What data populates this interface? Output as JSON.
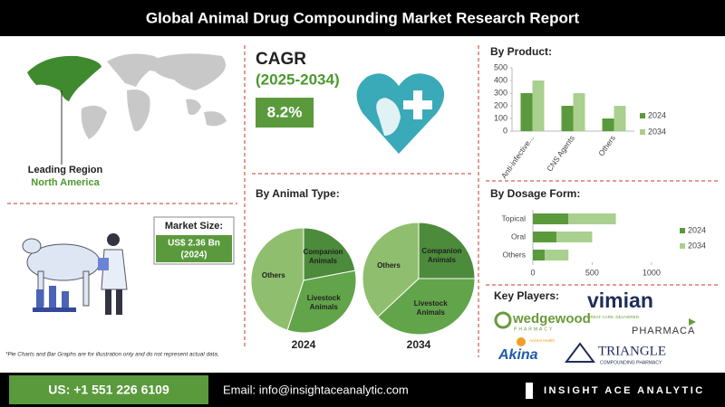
{
  "header": {
    "title": "Global Animal Drug Compounding Market Research Report"
  },
  "region": {
    "label": "Leading Region",
    "value": "North America"
  },
  "market_size": {
    "label": "Market Size:",
    "value": "US$ 2.36 Bn",
    "year": "(2024)"
  },
  "cagr": {
    "label": "CAGR",
    "period": "(2025-2034)",
    "value": "8.2%"
  },
  "animal_type": {
    "title": "By Animal Type:"
  },
  "chart_data": [
    {
      "type": "pie",
      "title": "2024",
      "categories": [
        "Companion Animals",
        "Livestock Animals",
        "Others"
      ],
      "values": [
        22,
        33,
        45
      ],
      "colors": [
        "#4b8b3b",
        "#62a44a",
        "#8fbf6e"
      ]
    },
    {
      "type": "pie",
      "title": "2034",
      "categories": [
        "Companion Animals",
        "Livestock Animals",
        "Others"
      ],
      "values": [
        25,
        38,
        37
      ],
      "colors": [
        "#4b8b3b",
        "#62a44a",
        "#8fbf6e"
      ]
    },
    {
      "type": "bar",
      "title": "By Product:",
      "categories": [
        "Anti-infective...",
        "CNS Agents",
        "Others"
      ],
      "series": [
        {
          "name": "2024",
          "color": "#5a9a3c",
          "values": [
            300,
            200,
            100
          ]
        },
        {
          "name": "2034",
          "color": "#a9d08e",
          "values": [
            400,
            300,
            200
          ]
        }
      ],
      "ylim": [
        0,
        500
      ],
      "yticks": [
        0,
        100,
        200,
        300,
        400,
        500
      ]
    },
    {
      "type": "stacked-barh",
      "title": "By Dosage Form:",
      "categories": [
        "Topical",
        "Oral",
        "Others"
      ],
      "series": [
        {
          "name": "2024",
          "color": "#5a9a3c",
          "values": [
            300,
            200,
            100
          ]
        },
        {
          "name": "2034",
          "color": "#a9d08e",
          "values": [
            400,
            300,
            200
          ]
        }
      ],
      "xlim": [
        0,
        1200
      ],
      "xticks": [
        0,
        500,
        1000
      ]
    }
  ],
  "key_players": {
    "title": "Key Players:",
    "players": [
      {
        "name": "vimian"
      },
      {
        "name": "wedgewood",
        "sub": "PHARMACY",
        "tagline": "GREAT CARE. DELIVERED."
      },
      {
        "name": "PHARMACA"
      },
      {
        "name": "Akina",
        "sub": "Animal Health"
      },
      {
        "name": "TRIANGLE",
        "sub": "COMPOUNDING PHARMACY"
      }
    ]
  },
  "footnote": "*Pie Charts and Bar Graphs are for illustration only and do not represent actual data.",
  "footer": {
    "phone": "US: +1 551 226 6109",
    "email": "Email: info@insightaceanalytic.com",
    "brand": "INSIGHT ACE ANALYTIC"
  }
}
